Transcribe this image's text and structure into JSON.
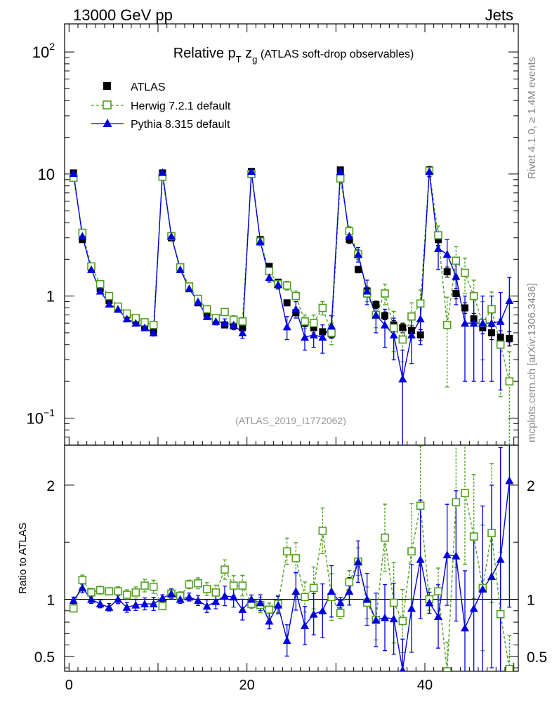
{
  "header": {
    "energy_label": "13000 GeV pp",
    "category_label": "Jets"
  },
  "side_text": {
    "rivet": "Rivet 4.1.0, ≥ 1.4M events",
    "mcplots": "mcplots.cern.ch [arXiv:1306.3436]"
  },
  "chart_data": {
    "type": "scatter",
    "title_parts": {
      "pre": "Relative p",
      "sub1": "T",
      "mid": " z",
      "sub2": "g",
      "post": " (ATLAS soft-drop observables)"
    },
    "analysis_id": "(ATLAS_2019_I1772062)",
    "top_panel": {
      "yscale": "log",
      "ylim": [
        0.06,
        170
      ],
      "yticks": [
        {
          "v": 0.1,
          "base": "10",
          "exp": "−1"
        },
        {
          "v": 1,
          "base": "1",
          "exp": ""
        },
        {
          "v": 10,
          "base": "10",
          "exp": ""
        },
        {
          "v": 100,
          "base": "10",
          "exp": "2"
        }
      ]
    },
    "ratio_panel": {
      "ylabel": "Ratio to ATLAS",
      "ylim": [
        0.37,
        2.35
      ],
      "yticks": [
        0.5,
        1,
        2
      ],
      "ytick_labels": [
        "0.5",
        "1",
        "2"
      ]
    },
    "xlim": [
      -0.5,
      50.5
    ],
    "xticks": [
      0,
      20,
      40
    ],
    "xtick_labels": [
      "0",
      "20",
      "40"
    ],
    "legend": [
      {
        "name": "ATLAS"
      },
      {
        "name": "Herwig 7.2.1 default"
      },
      {
        "name": "Pythia 8.315 default"
      }
    ],
    "x": [
      0.5,
      1.5,
      2.5,
      3.5,
      4.5,
      5.5,
      6.5,
      7.5,
      8.5,
      9.5,
      10.5,
      11.5,
      12.5,
      13.5,
      14.5,
      15.5,
      16.5,
      17.5,
      18.5,
      19.5,
      20.5,
      21.5,
      22.5,
      23.5,
      24.5,
      25.5,
      26.5,
      27.5,
      28.5,
      29.5,
      30.5,
      31.5,
      32.5,
      33.5,
      34.5,
      35.5,
      36.5,
      37.5,
      38.5,
      39.5,
      40.5,
      41.5,
      42.5,
      43.5,
      44.5,
      45.5,
      46.5,
      47.5,
      48.5,
      49.5
    ],
    "series": [
      {
        "name": "ATLAS",
        "color": "#000000",
        "values": [
          10.2,
          2.9,
          1.65,
          1.15,
          0.92,
          0.78,
          0.7,
          0.63,
          0.57,
          0.52,
          10.2,
          3.0,
          1.65,
          1.15,
          0.88,
          0.72,
          0.63,
          0.58,
          0.57,
          0.55,
          10.5,
          2.9,
          1.75,
          1.3,
          0.88,
          0.73,
          0.6,
          0.55,
          0.51,
          0.49,
          10.8,
          2.9,
          1.65,
          1.1,
          0.85,
          0.69,
          0.58,
          0.55,
          0.52,
          0.48,
          10.8,
          2.9,
          1.58,
          1.05,
          0.8,
          0.65,
          0.55,
          0.5,
          0.46,
          0.45
        ],
        "errors": [
          0.3,
          0.1,
          0.04,
          0.03,
          0.02,
          0.02,
          0.02,
          0.02,
          0.02,
          0.02,
          0.3,
          0.1,
          0.05,
          0.03,
          0.02,
          0.02,
          0.02,
          0.02,
          0.02,
          0.02,
          0.4,
          0.15,
          0.07,
          0.05,
          0.04,
          0.04,
          0.03,
          0.03,
          0.03,
          0.03,
          0.6,
          0.2,
          0.1,
          0.07,
          0.06,
          0.05,
          0.05,
          0.05,
          0.05,
          0.05,
          0.8,
          0.3,
          0.15,
          0.1,
          0.08,
          0.07,
          0.06,
          0.06,
          0.06,
          0.06
        ]
      },
      {
        "name": "Herwig 7.2.1 default",
        "color": "#4f9f1f",
        "values": [
          9.3,
          3.3,
          1.75,
          1.25,
          1.0,
          0.82,
          0.72,
          0.66,
          0.61,
          0.58,
          9.5,
          3.1,
          1.72,
          1.2,
          0.95,
          0.78,
          0.66,
          0.74,
          0.64,
          0.62,
          10.0,
          2.8,
          1.6,
          1.25,
          1.22,
          1.0,
          0.62,
          0.6,
          0.8,
          0.5,
          9.2,
          3.4,
          2.2,
          1.05,
          0.7,
          1.05,
          0.55,
          0.44,
          0.68,
          0.87,
          10.6,
          3.15,
          0.58,
          1.95,
          1.55,
          1.0,
          0.6,
          0.78,
          0.4,
          0.2
        ],
        "errors": [
          0.3,
          0.12,
          0.06,
          0.04,
          0.03,
          0.03,
          0.03,
          0.03,
          0.03,
          0.03,
          0.3,
          0.12,
          0.06,
          0.04,
          0.04,
          0.04,
          0.04,
          0.05,
          0.05,
          0.05,
          0.4,
          0.2,
          0.1,
          0.1,
          0.1,
          0.1,
          0.08,
          0.1,
          0.1,
          0.1,
          0.5,
          0.3,
          0.2,
          0.15,
          0.15,
          0.2,
          0.2,
          0.15,
          0.2,
          0.25,
          1.0,
          0.6,
          0.4,
          0.6,
          0.5,
          0.35,
          0.3,
          0.3,
          0.25,
          0.15
        ]
      },
      {
        "name": "Pythia 8.315 default",
        "color": "#0000dd",
        "values": [
          10.1,
          3.1,
          1.65,
          1.1,
          0.86,
          0.78,
          0.65,
          0.6,
          0.55,
          0.5,
          10.3,
          3.1,
          1.65,
          1.15,
          0.9,
          0.68,
          0.62,
          0.6,
          0.58,
          0.5,
          10.5,
          2.8,
          1.42,
          1.24,
          0.56,
          0.78,
          0.46,
          0.48,
          0.46,
          0.57,
          10.5,
          3.1,
          2.2,
          1.1,
          0.7,
          0.58,
          0.48,
          0.21,
          0.48,
          0.65,
          10.5,
          2.45,
          2.2,
          1.45,
          0.6,
          0.6,
          0.6,
          0.6,
          0.62,
          0.92
        ],
        "errors": [
          0.3,
          0.12,
          0.06,
          0.04,
          0.03,
          0.03,
          0.03,
          0.03,
          0.03,
          0.03,
          0.3,
          0.12,
          0.06,
          0.04,
          0.04,
          0.04,
          0.04,
          0.05,
          0.05,
          0.05,
          0.4,
          0.2,
          0.12,
          0.1,
          0.12,
          0.12,
          0.1,
          0.1,
          0.12,
          0.12,
          0.5,
          0.35,
          0.3,
          0.25,
          0.2,
          0.2,
          0.18,
          0.15,
          0.2,
          0.25,
          1.0,
          0.8,
          0.7,
          0.6,
          0.4,
          0.4,
          0.4,
          0.4,
          0.45,
          0.5
        ]
      }
    ],
    "ratios": {
      "Herwig 7.2.1 default": [
        0.92,
        1.17,
        1.06,
        1.08,
        1.07,
        1.07,
        1.04,
        1.06,
        1.12,
        1.11,
        0.94,
        1.05,
        1.03,
        1.13,
        1.14,
        1.09,
        1.06,
        1.26,
        1.12,
        1.12,
        0.96,
        0.95,
        0.91,
        0.96,
        1.42,
        1.36,
        1.02,
        1.1,
        1.6,
        1.02,
        0.88,
        1.15,
        1.33,
        0.97,
        0.82,
        1.54,
        0.97,
        0.81,
        1.42,
        1.82,
        1.0,
        1.07,
        0.37,
        1.85,
        1.93,
        1.55,
        1.1,
        1.58,
        0.87,
        0.39
      ],
      "Pythia 8.315 default": [
        0.99,
        1.1,
        1.0,
        0.96,
        0.93,
        1.0,
        0.93,
        0.95,
        0.96,
        0.96,
        1.01,
        1.05,
        1.0,
        1.02,
        0.99,
        0.94,
        0.98,
        1.03,
        1.02,
        0.91,
        1.0,
        0.97,
        0.81,
        0.95,
        0.64,
        1.07,
        0.77,
        0.87,
        0.9,
        1.07,
        0.97,
        1.07,
        1.33,
        1.0,
        0.82,
        0.84,
        0.83,
        0.38,
        0.92,
        1.35,
        0.97,
        0.85,
        1.39,
        1.38,
        0.75,
        0.92,
        1.09,
        1.2,
        1.35,
        2.04
      ]
    }
  }
}
